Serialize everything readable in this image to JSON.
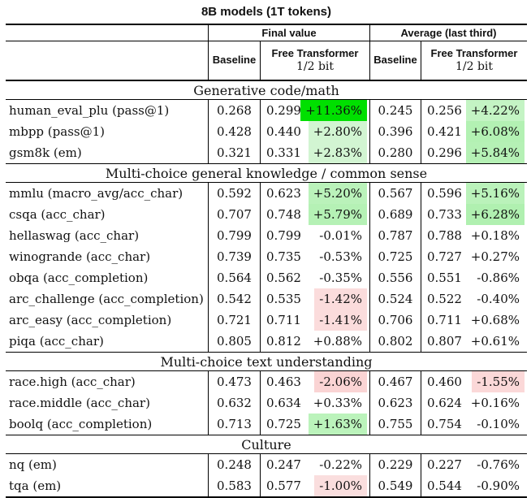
{
  "title": "8B models (1T tokens)",
  "header": {
    "group_final": "Final value",
    "group_avg": "Average (last third)",
    "baseline": "Baseline",
    "free_transformer": "Free Transformer",
    "bits": "1/2 bit"
  },
  "colors": {
    "strong_green": "#00e000",
    "light_green": "#b5f1b5",
    "pale_green": "#d2f5d2",
    "pale_pink": "#fbdcdc",
    "pink": "#fad4d4",
    "rule": "#000000"
  },
  "sections": [
    {
      "label": "Generative code/math",
      "rows": [
        {
          "name": "human_eval_plu (pass@1)",
          "final": {
            "baseline": "0.268",
            "ft": "0.299",
            "pct": "+11.36%",
            "pct_bg": "#00e000"
          },
          "avg": {
            "baseline": "0.245",
            "ft": "0.256",
            "pct": "+4.22%",
            "pct_bg": "#c4f4c4"
          }
        },
        {
          "name": "mbpp (pass@1)",
          "final": {
            "baseline": "0.428",
            "ft": "0.440",
            "pct": "+2.80%",
            "pct_bg": "#d2f5d2"
          },
          "avg": {
            "baseline": "0.396",
            "ft": "0.421",
            "pct": "+6.08%",
            "pct_bg": "#b3f1b3"
          }
        },
        {
          "name": "gsm8k (em)",
          "final": {
            "baseline": "0.321",
            "ft": "0.331",
            "pct": "+2.83%",
            "pct_bg": "#d2f5d2"
          },
          "avg": {
            "baseline": "0.280",
            "ft": "0.296",
            "pct": "+5.84%",
            "pct_bg": "#b5f1b5"
          }
        }
      ]
    },
    {
      "label": "Multi-choice general knowledge / common sense",
      "rows": [
        {
          "name": "mmlu (macro_avg/acc_char)",
          "final": {
            "baseline": "0.592",
            "ft": "0.623",
            "pct": "+5.20%",
            "pct_bg": "#baf2ba"
          },
          "avg": {
            "baseline": "0.567",
            "ft": "0.596",
            "pct": "+5.16%",
            "pct_bg": "#baf2ba"
          }
        },
        {
          "name": "csqa (acc_char)",
          "final": {
            "baseline": "0.707",
            "ft": "0.748",
            "pct": "+5.79%",
            "pct_bg": "#b5f1b5"
          },
          "avg": {
            "baseline": "0.689",
            "ft": "0.733",
            "pct": "+6.28%",
            "pct_bg": "#b0f0b0"
          }
        },
        {
          "name": "hellaswag (acc_char)",
          "final": {
            "baseline": "0.799",
            "ft": "0.799",
            "pct": "-0.01%",
            "pct_bg": null
          },
          "avg": {
            "baseline": "0.787",
            "ft": "0.788",
            "pct": "+0.18%",
            "pct_bg": null
          }
        },
        {
          "name": "winogrande (acc_char)",
          "final": {
            "baseline": "0.739",
            "ft": "0.735",
            "pct": "-0.53%",
            "pct_bg": null
          },
          "avg": {
            "baseline": "0.725",
            "ft": "0.727",
            "pct": "+0.27%",
            "pct_bg": null
          }
        },
        {
          "name": "obqa (acc_completion)",
          "final": {
            "baseline": "0.564",
            "ft": "0.562",
            "pct": "-0.35%",
            "pct_bg": null
          },
          "avg": {
            "baseline": "0.556",
            "ft": "0.551",
            "pct": "-0.86%",
            "pct_bg": null
          }
        },
        {
          "name": "arc_challenge (acc_completion)",
          "final": {
            "baseline": "0.542",
            "ft": "0.535",
            "pct": "-1.42%",
            "pct_bg": "#fbdcdc"
          },
          "avg": {
            "baseline": "0.524",
            "ft": "0.522",
            "pct": "-0.40%",
            "pct_bg": null
          }
        },
        {
          "name": "arc_easy (acc_completion)",
          "final": {
            "baseline": "0.721",
            "ft": "0.711",
            "pct": "-1.41%",
            "pct_bg": "#fbdcdc"
          },
          "avg": {
            "baseline": "0.706",
            "ft": "0.711",
            "pct": "+0.68%",
            "pct_bg": null
          }
        },
        {
          "name": "piqa (acc_char)",
          "final": {
            "baseline": "0.805",
            "ft": "0.812",
            "pct": "+0.88%",
            "pct_bg": null
          },
          "avg": {
            "baseline": "0.802",
            "ft": "0.807",
            "pct": "+0.61%",
            "pct_bg": null
          }
        }
      ]
    },
    {
      "label": "Multi-choice text understanding",
      "rows": [
        {
          "name": "race.high (acc_char)",
          "final": {
            "baseline": "0.473",
            "ft": "0.463",
            "pct": "-2.06%",
            "pct_bg": "#fad4d4"
          },
          "avg": {
            "baseline": "0.467",
            "ft": "0.460",
            "pct": "-1.55%",
            "pct_bg": "#fbd8d8"
          }
        },
        {
          "name": "race.middle (acc_char)",
          "final": {
            "baseline": "0.632",
            "ft": "0.634",
            "pct": "+0.33%",
            "pct_bg": null
          },
          "avg": {
            "baseline": "0.623",
            "ft": "0.624",
            "pct": "+0.16%",
            "pct_bg": null
          }
        },
        {
          "name": "boolq (acc_completion)",
          "final": {
            "baseline": "0.713",
            "ft": "0.725",
            "pct": "+1.63%",
            "pct_bg": "#bbf3bb"
          },
          "avg": {
            "baseline": "0.755",
            "ft": "0.754",
            "pct": "-0.10%",
            "pct_bg": null
          }
        }
      ]
    },
    {
      "label": "Culture",
      "rows": [
        {
          "name": "nq (em)",
          "final": {
            "baseline": "0.248",
            "ft": "0.247",
            "pct": "-0.22%",
            "pct_bg": null
          },
          "avg": {
            "baseline": "0.229",
            "ft": "0.227",
            "pct": "-0.76%",
            "pct_bg": null
          }
        },
        {
          "name": "tqa (em)",
          "final": {
            "baseline": "0.583",
            "ft": "0.577",
            "pct": "-1.00%",
            "pct_bg": "#fadede"
          },
          "avg": {
            "baseline": "0.549",
            "ft": "0.544",
            "pct": "-0.90%",
            "pct_bg": null
          }
        }
      ]
    }
  ]
}
